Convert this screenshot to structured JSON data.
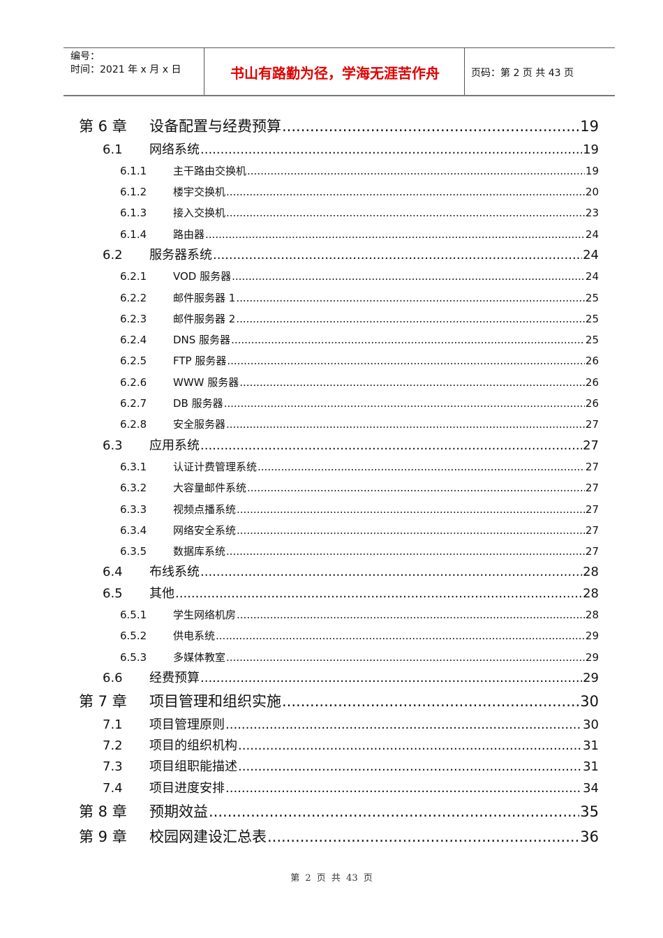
{
  "header": {
    "number_label": "编号：",
    "date_label": "时间：2021 年 x 月 x 日",
    "motto": "书山有路勤为径，学海无涯苦作舟",
    "page_info": "页码：第 2 页  共 43 页",
    "motto_color": "#e00000"
  },
  "toc": [
    {
      "level": 1,
      "num": "第 6 章",
      "title": "设备配置与经费预算",
      "page": "19"
    },
    {
      "level": 2,
      "num": "6.1",
      "title": "网络系统",
      "page": "19"
    },
    {
      "level": 3,
      "num": "6.1.1",
      "title": "主干路由交换机",
      "page": "19"
    },
    {
      "level": 3,
      "num": "6.1.2",
      "title": "楼宇交换机",
      "page": "20"
    },
    {
      "level": 3,
      "num": "6.1.3",
      "title": "接入交换机",
      "page": "23"
    },
    {
      "level": 3,
      "num": "6.1.4",
      "title": "路由器",
      "page": "24"
    },
    {
      "level": 2,
      "num": "6.2",
      "title": "服务器系统",
      "page": "24"
    },
    {
      "level": 3,
      "num": "6.2.1",
      "title": "VOD 服务器",
      "page": "24"
    },
    {
      "level": 3,
      "num": "6.2.2",
      "title": "邮件服务器 1",
      "page": "25"
    },
    {
      "level": 3,
      "num": "6.2.3",
      "title": "邮件服务器 2",
      "page": "25"
    },
    {
      "level": 3,
      "num": "6.2.4",
      "title": "DNS 服务器",
      "page": "25"
    },
    {
      "level": 3,
      "num": "6.2.5",
      "title": "FTP 服务器",
      "page": "26"
    },
    {
      "level": 3,
      "num": "6.2.6",
      "title": "WWW 服务器",
      "page": "26"
    },
    {
      "level": 3,
      "num": "6.2.7",
      "title": "DB 服务器",
      "page": "26"
    },
    {
      "level": 3,
      "num": "6.2.8",
      "title": "安全服务器",
      "page": "27"
    },
    {
      "level": 2,
      "num": "6.3",
      "title": "应用系统",
      "page": "27"
    },
    {
      "level": 3,
      "num": "6.3.1",
      "title": "认证计费管理系统",
      "page": "27"
    },
    {
      "level": 3,
      "num": "6.3.2",
      "title": "大容量邮件系统",
      "page": "27"
    },
    {
      "level": 3,
      "num": "6.3.3",
      "title": "视频点播系统",
      "page": "27"
    },
    {
      "level": 3,
      "num": "6.3.4",
      "title": "网络安全系统",
      "page": "27"
    },
    {
      "level": 3,
      "num": "6.3.5",
      "title": "数据库系统",
      "page": "27"
    },
    {
      "level": 2,
      "num": "6.4",
      "title": "布线系统",
      "page": "28"
    },
    {
      "level": 2,
      "num": "6.5",
      "title": "其他",
      "page": "28"
    },
    {
      "level": 3,
      "num": "6.5.1",
      "title": "学生网络机房",
      "page": "28"
    },
    {
      "level": 3,
      "num": "6.5.2",
      "title": "供电系统",
      "page": "29"
    },
    {
      "level": 3,
      "num": "6.5.3",
      "title": "多媒体教室",
      "page": "29"
    },
    {
      "level": 2,
      "num": "6.6",
      "title": "经费预算",
      "page": "29"
    },
    {
      "level": 1,
      "num": "第 7 章",
      "title": "项目管理和组织实施",
      "page": "30"
    },
    {
      "level": 2,
      "num": "7.1",
      "title": "项目管理原则",
      "page": "30"
    },
    {
      "level": 2,
      "num": "7.2",
      "title": "项目的组织机构",
      "page": "31"
    },
    {
      "level": 2,
      "num": "7.3",
      "title": "项目组职能描述",
      "page": "31"
    },
    {
      "level": 2,
      "num": "7.4",
      "title": "项目进度安排",
      "page": "34"
    },
    {
      "level": 1,
      "num": "第 8 章",
      "title": "预期效益",
      "page": "35"
    },
    {
      "level": 1,
      "num": "第 9 章",
      "title": "校园网建设汇总表",
      "page": "36"
    }
  ],
  "footer": {
    "text": "第 2 页 共 43 页"
  }
}
